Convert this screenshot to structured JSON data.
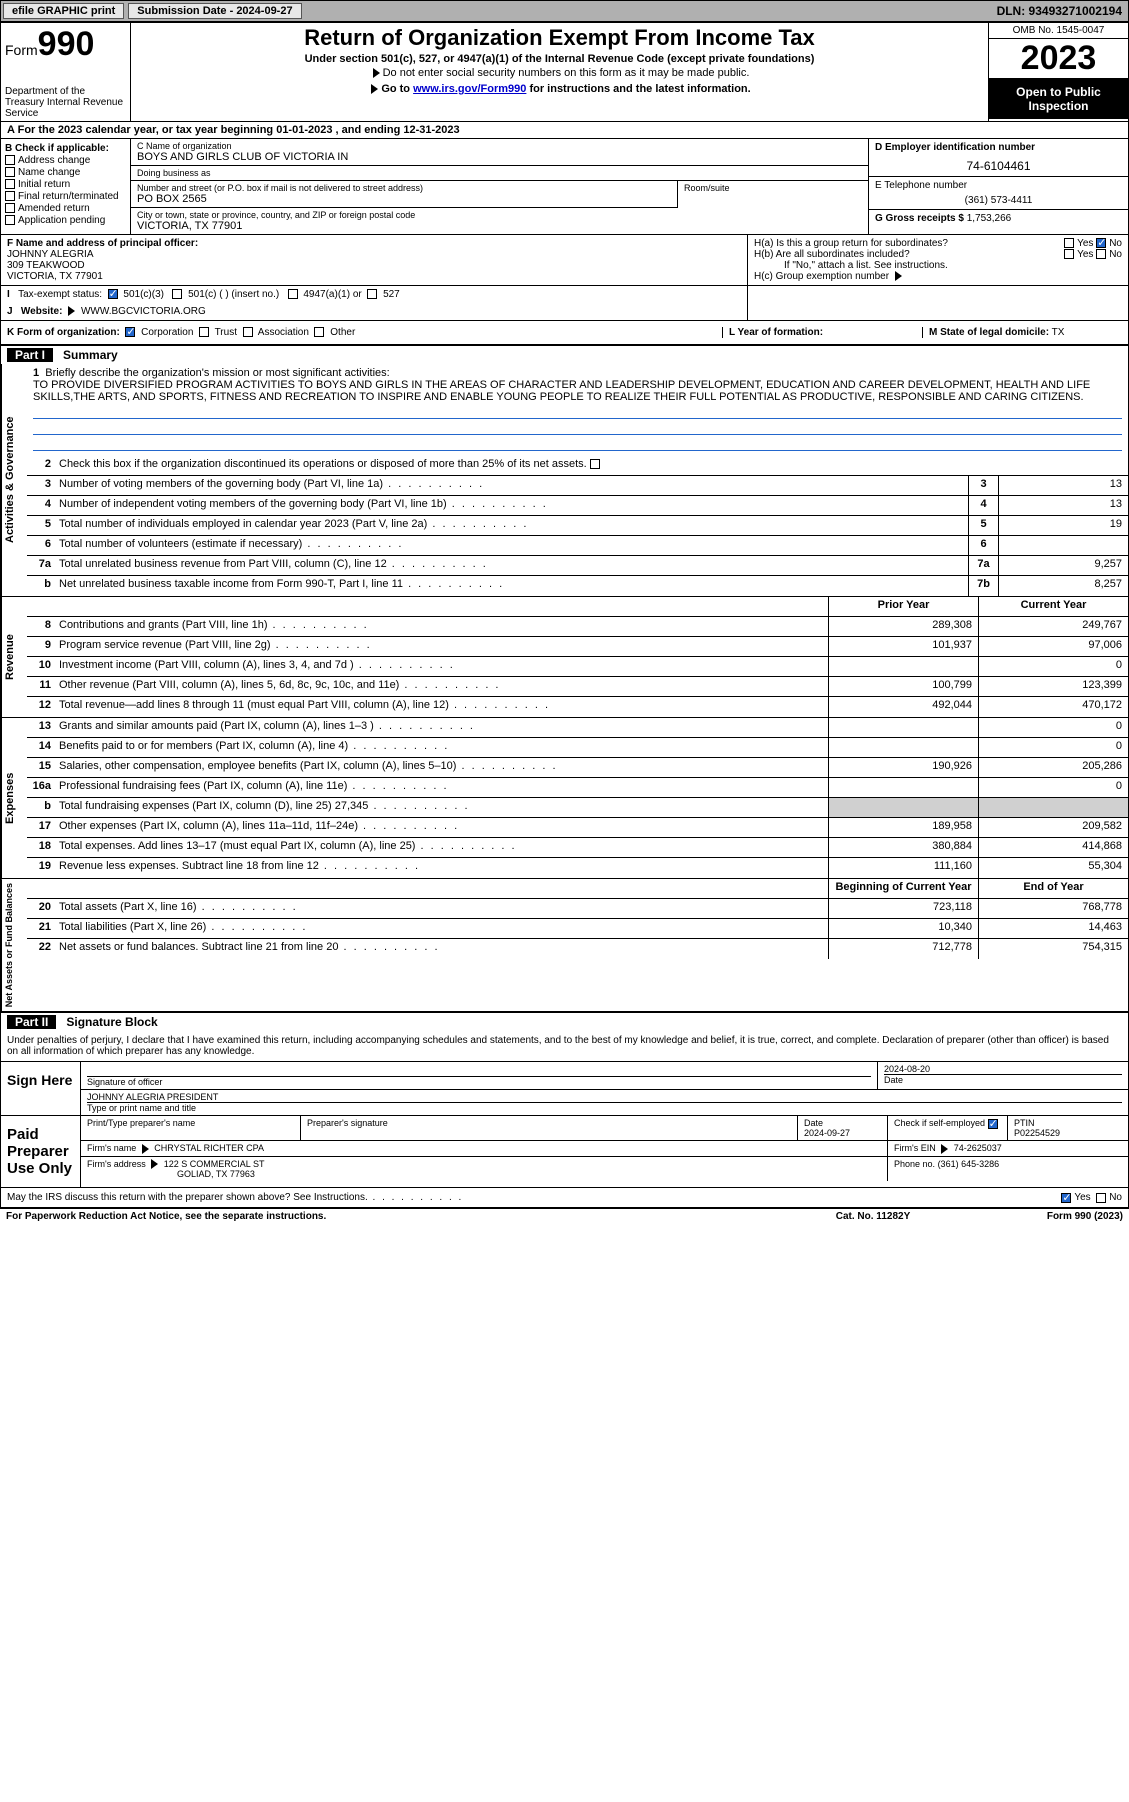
{
  "topbar": {
    "efile": "efile GRAPHIC print",
    "sub_label": "Submission Date - 2024-09-27",
    "dln": "DLN: 93493271002194"
  },
  "header": {
    "form_word": "Form",
    "form_num": "990",
    "dept": "Department of the Treasury Internal Revenue Service",
    "title": "Return of Organization Exempt From Income Tax",
    "sub1": "Under section 501(c), 527, or 4947(a)(1) of the Internal Revenue Code (except private foundations)",
    "sub2": "Do not enter social security numbers on this form as it may be made public.",
    "goto_pre": "Go to ",
    "goto_link": "www.irs.gov/Form990",
    "goto_post": " for instructions and the latest information.",
    "omb": "OMB No. 1545-0047",
    "year": "2023",
    "open": "Open to Public Inspection"
  },
  "row_a": "For the 2023 calendar year, or tax year beginning 01-01-2023   , and ending 12-31-2023",
  "box_b": {
    "title": "B Check if applicable:",
    "items": [
      "Address change",
      "Name change",
      "Initial return",
      "Final return/terminated",
      "Amended return",
      "Application pending"
    ]
  },
  "box_c": {
    "name_lbl": "C Name of organization",
    "name": "BOYS AND GIRLS CLUB OF VICTORIA IN",
    "dba_lbl": "Doing business as",
    "dba": "",
    "street_lbl": "Number and street (or P.O. box if mail is not delivered to street address)",
    "street": "PO BOX 2565",
    "room_lbl": "Room/suite",
    "city_lbl": "City or town, state or province, country, and ZIP or foreign postal code",
    "city": "VICTORIA, TX  77901"
  },
  "box_d": {
    "lbl": "D Employer identification number",
    "val": "74-6104461"
  },
  "box_e": {
    "lbl": "E Telephone number",
    "val": "(361) 573-4411"
  },
  "box_g": {
    "lbl": "G Gross receipts $",
    "val": "1,753,266"
  },
  "box_f": {
    "lbl": "F Name and address of principal officer:",
    "name": "JOHNNY ALEGRIA",
    "addr1": "309 TEAKWOOD",
    "addr2": "VICTORIA, TX  77901"
  },
  "box_h": {
    "ha": "H(a)  Is this a group return for subordinates?",
    "hb": "H(b)  Are all subordinates included?",
    "hb_note": "If \"No,\" attach a list. See instructions.",
    "hc": "H(c)  Group exemption number",
    "yes": "Yes",
    "no": "No"
  },
  "row_i": {
    "lbl": "Tax-exempt status:",
    "o1": "501(c)(3)",
    "o2": "501(c) (  ) (insert no.)",
    "o3": "4947(a)(1) or",
    "o4": "527"
  },
  "row_j": {
    "lbl": "Website:",
    "val": "WWW.BGCVICTORIA.ORG"
  },
  "row_k": {
    "lbl": "K Form of organization:",
    "o1": "Corporation",
    "o2": "Trust",
    "o3": "Association",
    "o4": "Other",
    "l_lbl": "L Year of formation:",
    "l_val": "",
    "m_lbl": "M State of legal domicile:",
    "m_val": "TX"
  },
  "part1": {
    "tag": "Part I",
    "title": "Summary"
  },
  "sidelabels": {
    "gov": "Activities & Governance",
    "rev": "Revenue",
    "exp": "Expenses",
    "net": "Net Assets or Fund Balances"
  },
  "mission": {
    "lbl": "Briefly describe the organization's mission or most significant activities:",
    "txt": "TO PROVIDE DIVERSIFIED PROGRAM ACTIVITIES TO BOYS AND GIRLS IN THE AREAS OF CHARACTER AND LEADERSHIP DEVELOPMENT, EDUCATION AND CAREER DEVELOPMENT, HEALTH AND LIFE SKILLS,THE ARTS, AND SPORTS, FITNESS AND RECREATION TO INSPIRE AND ENABLE YOUNG PEOPLE TO REALIZE THEIR FULL POTENTIAL AS PRODUCTIVE, RESPONSIBLE AND CARING CITIZENS."
  },
  "gov_lines": {
    "l2": "Check this box      if the organization discontinued its operations or disposed of more than 25% of its net assets.",
    "l3": {
      "t": "Number of voting members of the governing body (Part VI, line 1a)",
      "n": "3",
      "v": "13"
    },
    "l4": {
      "t": "Number of independent voting members of the governing body (Part VI, line 1b)",
      "n": "4",
      "v": "13"
    },
    "l5": {
      "t": "Total number of individuals employed in calendar year 2023 (Part V, line 2a)",
      "n": "5",
      "v": "19"
    },
    "l6": {
      "t": "Total number of volunteers (estimate if necessary)",
      "n": "6",
      "v": ""
    },
    "l7a": {
      "t": "Total unrelated business revenue from Part VIII, column (C), line 12",
      "n": "7a",
      "v": "9,257"
    },
    "l7b": {
      "t": "Net unrelated business taxable income from Form 990-T, Part I, line 11",
      "n": "7b",
      "v": "8,257"
    }
  },
  "cols": {
    "py": "Prior Year",
    "cy": "Current Year",
    "boy": "Beginning of Current Year",
    "eoy": "End of Year"
  },
  "rev_lines": [
    {
      "n": "8",
      "t": "Contributions and grants (Part VIII, line 1h)",
      "py": "289,308",
      "cy": "249,767"
    },
    {
      "n": "9",
      "t": "Program service revenue (Part VIII, line 2g)",
      "py": "101,937",
      "cy": "97,006"
    },
    {
      "n": "10",
      "t": "Investment income (Part VIII, column (A), lines 3, 4, and 7d )",
      "py": "",
      "cy": "0"
    },
    {
      "n": "11",
      "t": "Other revenue (Part VIII, column (A), lines 5, 6d, 8c, 9c, 10c, and 11e)",
      "py": "100,799",
      "cy": "123,399"
    },
    {
      "n": "12",
      "t": "Total revenue—add lines 8 through 11 (must equal Part VIII, column (A), line 12)",
      "py": "492,044",
      "cy": "470,172"
    }
  ],
  "exp_lines": [
    {
      "n": "13",
      "t": "Grants and similar amounts paid (Part IX, column (A), lines 1–3 )",
      "py": "",
      "cy": "0"
    },
    {
      "n": "14",
      "t": "Benefits paid to or for members (Part IX, column (A), line 4)",
      "py": "",
      "cy": "0"
    },
    {
      "n": "15",
      "t": "Salaries, other compensation, employee benefits (Part IX, column (A), lines 5–10)",
      "py": "190,926",
      "cy": "205,286"
    },
    {
      "n": "16a",
      "t": "Professional fundraising fees (Part IX, column (A), line 11e)",
      "py": "",
      "cy": "0"
    },
    {
      "n": "b",
      "t": "Total fundraising expenses (Part IX, column (D), line 25) 27,345",
      "py": "GREY",
      "cy": "GREY"
    },
    {
      "n": "17",
      "t": "Other expenses (Part IX, column (A), lines 11a–11d, 11f–24e)",
      "py": "189,958",
      "cy": "209,582"
    },
    {
      "n": "18",
      "t": "Total expenses. Add lines 13–17 (must equal Part IX, column (A), line 25)",
      "py": "380,884",
      "cy": "414,868"
    },
    {
      "n": "19",
      "t": "Revenue less expenses. Subtract line 18 from line 12",
      "py": "111,160",
      "cy": "55,304"
    }
  ],
  "net_lines": [
    {
      "n": "20",
      "t": "Total assets (Part X, line 16)",
      "py": "723,118",
      "cy": "768,778"
    },
    {
      "n": "21",
      "t": "Total liabilities (Part X, line 26)",
      "py": "10,340",
      "cy": "14,463"
    },
    {
      "n": "22",
      "t": "Net assets or fund balances. Subtract line 21 from line 20",
      "py": "712,778",
      "cy": "754,315"
    }
  ],
  "part2": {
    "tag": "Part II",
    "title": "Signature Block"
  },
  "sig": {
    "perjury": "Under penalties of perjury, I declare that I have examined this return, including accompanying schedules and statements, and to the best of my knowledge and belief, it is true, correct, and complete. Declaration of preparer (other than officer) is based on all information of which preparer has any knowledge.",
    "sign_here": "Sign Here",
    "sig_officer_lbl": "Signature of officer",
    "sig_date": "2024-08-20",
    "date_lbl": "Date",
    "officer_name": "JOHNNY ALEGRIA  PRESIDENT",
    "type_lbl": "Type or print name and title",
    "paid": "Paid Preparer Use Only",
    "p_name_lbl": "Print/Type preparer's name",
    "p_sig_lbl": "Preparer's signature",
    "p_date_lbl": "Date",
    "p_date": "2024-09-27",
    "p_self": "Check      if self-employed",
    "ptin_lbl": "PTIN",
    "ptin": "P02254529",
    "firm_name_lbl": "Firm's name",
    "firm_name": "CHRYSTAL RICHTER CPA",
    "firm_ein_lbl": "Firm's EIN",
    "firm_ein": "74-2625037",
    "firm_addr_lbl": "Firm's address",
    "firm_addr": "122 S COMMERCIAL ST",
    "firm_city": "GOLIAD, TX  77963",
    "phone_lbl": "Phone no.",
    "phone": "(361) 645-3286",
    "discuss": "May the IRS discuss this return with the preparer shown above? See Instructions."
  },
  "footer": {
    "pra": "For Paperwork Reduction Act Notice, see the separate instructions.",
    "cat": "Cat. No. 11282Y",
    "form": "Form 990 (2023)"
  }
}
